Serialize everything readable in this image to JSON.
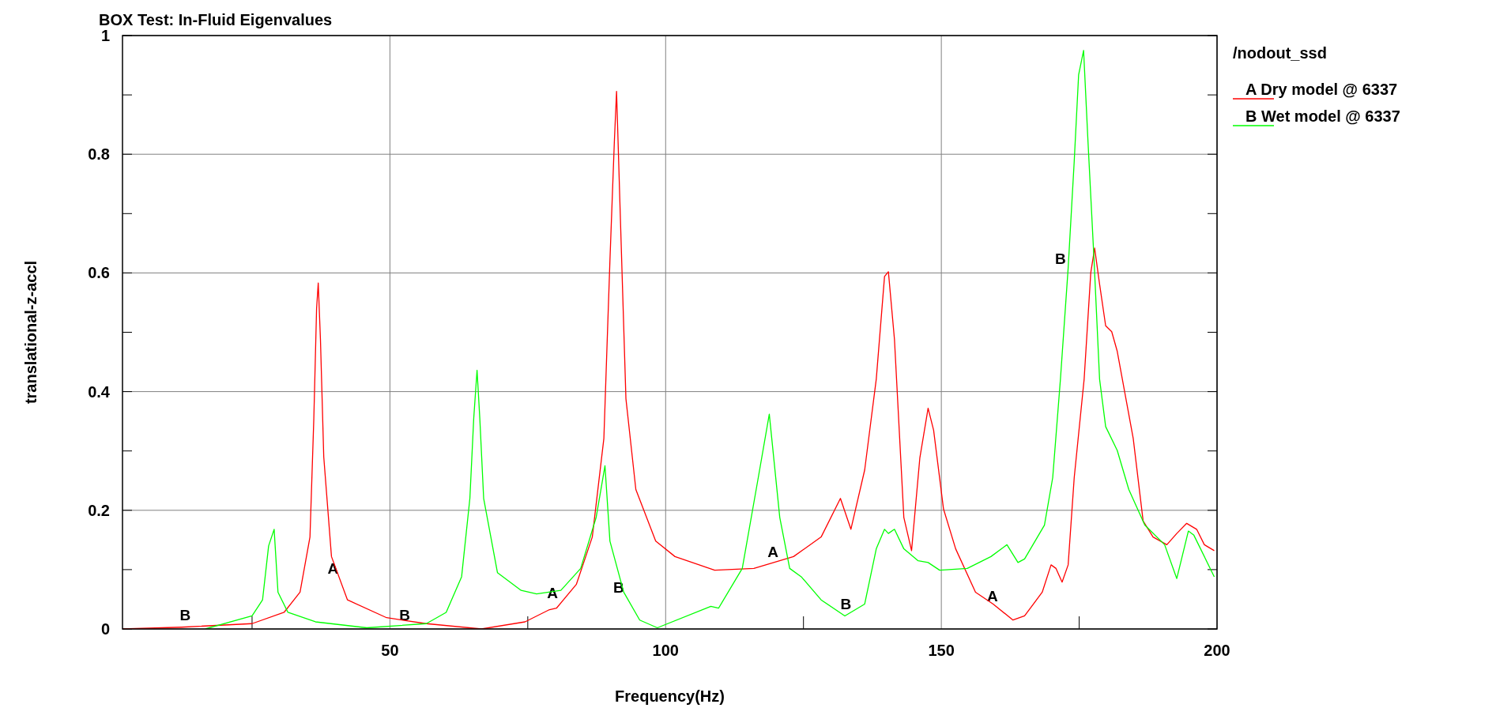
{
  "chart_data": {
    "type": "line",
    "title": "BOX Test: In-Fluid Eigenvalues",
    "xlabel": "Frequency(Hz)",
    "ylabel": "translational-z-accl",
    "legend_title": "/nodout_ssd",
    "legend": "right",
    "grid": true,
    "marker": "none",
    "line_style": "solid",
    "xlim": [
      1.5,
      200
    ],
    "xticks": [
      {
        "value": 25,
        "label": null
      },
      50,
      {
        "value": 75,
        "label": null
      },
      100,
      {
        "value": 125,
        "label": null
      },
      150,
      {
        "value": 175,
        "label": null
      },
      200
    ],
    "ylim": [
      0,
      1
    ],
    "yticks": [
      0,
      {
        "value": 0.1,
        "label": null
      },
      0.2,
      {
        "value": 0.3,
        "label": null
      },
      0.4,
      {
        "value": 0.5,
        "label": null
      },
      0.6,
      {
        "value": 0.7,
        "label": null
      },
      0.8,
      {
        "value": 0.9,
        "label": null
      },
      1
    ],
    "annotations": [
      {
        "text": "A",
        "x": 41.1,
        "y": 0.087
      },
      {
        "text": "A",
        "x": 80.9,
        "y": 0.045
      },
      {
        "text": "A",
        "x": 120.9,
        "y": 0.115
      },
      {
        "text": "A",
        "x": 160.7,
        "y": 0.04
      },
      {
        "text": "B",
        "x": 14.3,
        "y": 0.008
      },
      {
        "text": "B",
        "x": 54.1,
        "y": 0.008
      },
      {
        "text": "B",
        "x": 92.9,
        "y": 0.054
      },
      {
        "text": "B",
        "x": 134.1,
        "y": 0.027
      },
      {
        "text": "B",
        "x": 173,
        "y": 0.608
      }
    ],
    "series": [
      {
        "name": "A Dry model @ 6337",
        "color": "#ff0000",
        "x": [
          1.5,
          12.2,
          25,
          30.8,
          33.7,
          35.5,
          36.2,
          36.7,
          37,
          37.4,
          38,
          39.4,
          42.3,
          49.4,
          56.6,
          66.6,
          74.5,
          78.8,
          80.2,
          83.8,
          86.7,
          88.8,
          89.9,
          90.7,
          91.1,
          91.7,
          92.8,
          94.6,
          98.2,
          101.7,
          108.9,
          116,
          123.2,
          128.2,
          131.7,
          133.6,
          136.1,
          138.2,
          139.7,
          140.4,
          141.5,
          143.2,
          144.6,
          146.1,
          147.6,
          148.6,
          150.4,
          152.6,
          156.2,
          159.4,
          163,
          165.1,
          168.3,
          169.9,
          170.8,
          171.9,
          173,
          174.1,
          175.9,
          177.1,
          177.8,
          178.7,
          179.8,
          180.9,
          181.9,
          184.8,
          186.6,
          188.4,
          190.9,
          192.7,
          194.5,
          196.3,
          197.7,
          199.5
        ],
        "values": [
          0,
          0.003,
          0.009,
          0.028,
          0.062,
          0.155,
          0.355,
          0.54,
          0.583,
          0.488,
          0.29,
          0.122,
          0.049,
          0.019,
          0.009,
          0,
          0.012,
          0.032,
          0.035,
          0.075,
          0.155,
          0.321,
          0.621,
          0.821,
          0.906,
          0.721,
          0.388,
          0.235,
          0.148,
          0.122,
          0.099,
          0.102,
          0.122,
          0.155,
          0.22,
          0.168,
          0.268,
          0.421,
          0.594,
          0.602,
          0.488,
          0.188,
          0.132,
          0.288,
          0.372,
          0.335,
          0.202,
          0.135,
          0.062,
          0.042,
          0.015,
          0.022,
          0.062,
          0.108,
          0.102,
          0.079,
          0.108,
          0.255,
          0.421,
          0.6,
          0.642,
          0.581,
          0.511,
          0.501,
          0.468,
          0.321,
          0.182,
          0.155,
          0.142,
          0.161,
          0.178,
          0.168,
          0.142,
          0.132
        ]
      },
      {
        "name": "B Wet model @ 6337",
        "color": "#00ff00",
        "x": [
          16.5,
          25,
          26.9,
          28,
          29,
          29.7,
          31.5,
          36.5,
          45.8,
          56.6,
          60.2,
          63,
          64.5,
          65.2,
          65.8,
          66.3,
          67,
          69.5,
          73.8,
          76.6,
          81,
          84.6,
          87.4,
          89,
          89.9,
          92.4,
          95.3,
          98.5,
          108.2,
          109.6,
          113.9,
          116.8,
          118.8,
          120.7,
          122.5,
          124.6,
          128.2,
          132.5,
          136.1,
          138.2,
          139.7,
          140.4,
          141.5,
          143.2,
          145.8,
          147.6,
          149.7,
          154.7,
          159,
          161.9,
          163.9,
          165.1,
          168.7,
          170.2,
          171.6,
          173,
          174.1,
          174.9,
          175.8,
          176.6,
          177.7,
          178.7,
          179.8,
          181.9,
          184,
          186.9,
          190.5,
          192.7,
          194.8,
          195.8,
          199.5
        ],
        "values": [
          0,
          0.022,
          0.049,
          0.14,
          0.168,
          0.062,
          0.028,
          0.012,
          0.002,
          0.009,
          0.028,
          0.088,
          0.22,
          0.355,
          0.436,
          0.355,
          0.22,
          0.095,
          0.065,
          0.059,
          0.065,
          0.102,
          0.188,
          0.275,
          0.148,
          0.062,
          0.015,
          0.002,
          0.038,
          0.035,
          0.102,
          0.255,
          0.362,
          0.188,
          0.102,
          0.088,
          0.049,
          0.022,
          0.042,
          0.135,
          0.168,
          0.161,
          0.168,
          0.135,
          0.115,
          0.112,
          0.099,
          0.102,
          0.122,
          0.142,
          0.112,
          0.118,
          0.175,
          0.255,
          0.421,
          0.608,
          0.788,
          0.934,
          0.975,
          0.821,
          0.621,
          0.421,
          0.341,
          0.301,
          0.235,
          0.175,
          0.142,
          0.085,
          0.165,
          0.158,
          0.088
        ]
      }
    ]
  }
}
